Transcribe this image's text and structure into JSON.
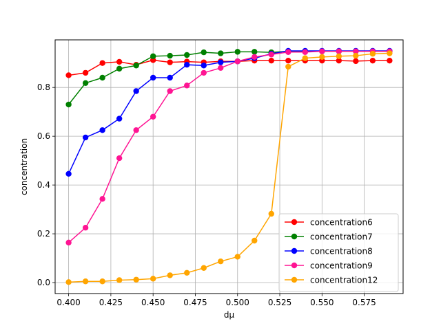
{
  "chart_data": {
    "type": "line",
    "title": "",
    "xlabel": "dμ",
    "ylabel": "concentration",
    "xlim": [
      0.392,
      0.598
    ],
    "ylim": [
      -0.045,
      0.995
    ],
    "grid": true,
    "legend_position": "lower-right",
    "x": [
      0.4,
      0.41,
      0.42,
      0.43,
      0.44,
      0.45,
      0.46,
      0.47,
      0.48,
      0.49,
      0.5,
      0.51,
      0.52,
      0.53,
      0.54,
      0.55,
      0.56,
      0.57,
      0.58,
      0.59
    ],
    "xticks": [
      "0.400",
      "0.425",
      "0.450",
      "0.475",
      "0.500",
      "0.525",
      "0.550",
      "0.575"
    ],
    "xtick_values": [
      0.4,
      0.425,
      0.45,
      0.475,
      0.5,
      0.525,
      0.55,
      0.575
    ],
    "yticks": [
      "0.0",
      "0.2",
      "0.4",
      "0.6",
      "0.8"
    ],
    "ytick_values": [
      0.0,
      0.2,
      0.4,
      0.6,
      0.8
    ],
    "series": [
      {
        "name": "concentration6",
        "color": "#ff0000",
        "values": [
          0.85,
          0.86,
          0.9,
          0.905,
          0.893,
          0.912,
          0.903,
          0.906,
          0.903,
          0.907,
          0.907,
          0.91,
          0.91,
          0.91,
          0.91,
          0.91,
          0.91,
          0.908,
          0.91,
          0.91
        ]
      },
      {
        "name": "concentration7",
        "color": "#008000",
        "values": [
          0.73,
          0.818,
          0.84,
          0.877,
          0.89,
          0.928,
          0.93,
          0.933,
          0.944,
          0.94,
          0.946,
          0.946,
          0.944,
          0.948,
          0.948,
          0.948,
          0.948,
          0.948,
          0.948,
          0.948
        ]
      },
      {
        "name": "concentration8",
        "color": "#0000ff",
        "values": [
          0.446,
          0.595,
          0.625,
          0.672,
          0.785,
          0.84,
          0.84,
          0.893,
          0.89,
          0.903,
          0.907,
          0.92,
          0.938,
          0.95,
          0.95,
          0.95,
          0.95,
          0.95,
          0.95,
          0.95
        ]
      },
      {
        "name": "concentration9",
        "color": "#ff1493",
        "values": [
          0.164,
          0.225,
          0.343,
          0.51,
          0.625,
          0.68,
          0.785,
          0.808,
          0.86,
          0.88,
          0.907,
          0.925,
          0.935,
          0.945,
          0.945,
          0.948,
          0.948,
          0.948,
          0.948,
          0.948
        ]
      },
      {
        "name": "concentration12",
        "color": "#ffa500",
        "values": [
          0.002,
          0.005,
          0.005,
          0.01,
          0.012,
          0.016,
          0.03,
          0.04,
          0.06,
          0.087,
          0.106,
          0.172,
          0.282,
          0.885,
          0.92,
          0.925,
          0.928,
          0.93,
          0.938,
          0.94
        ]
      }
    ]
  }
}
